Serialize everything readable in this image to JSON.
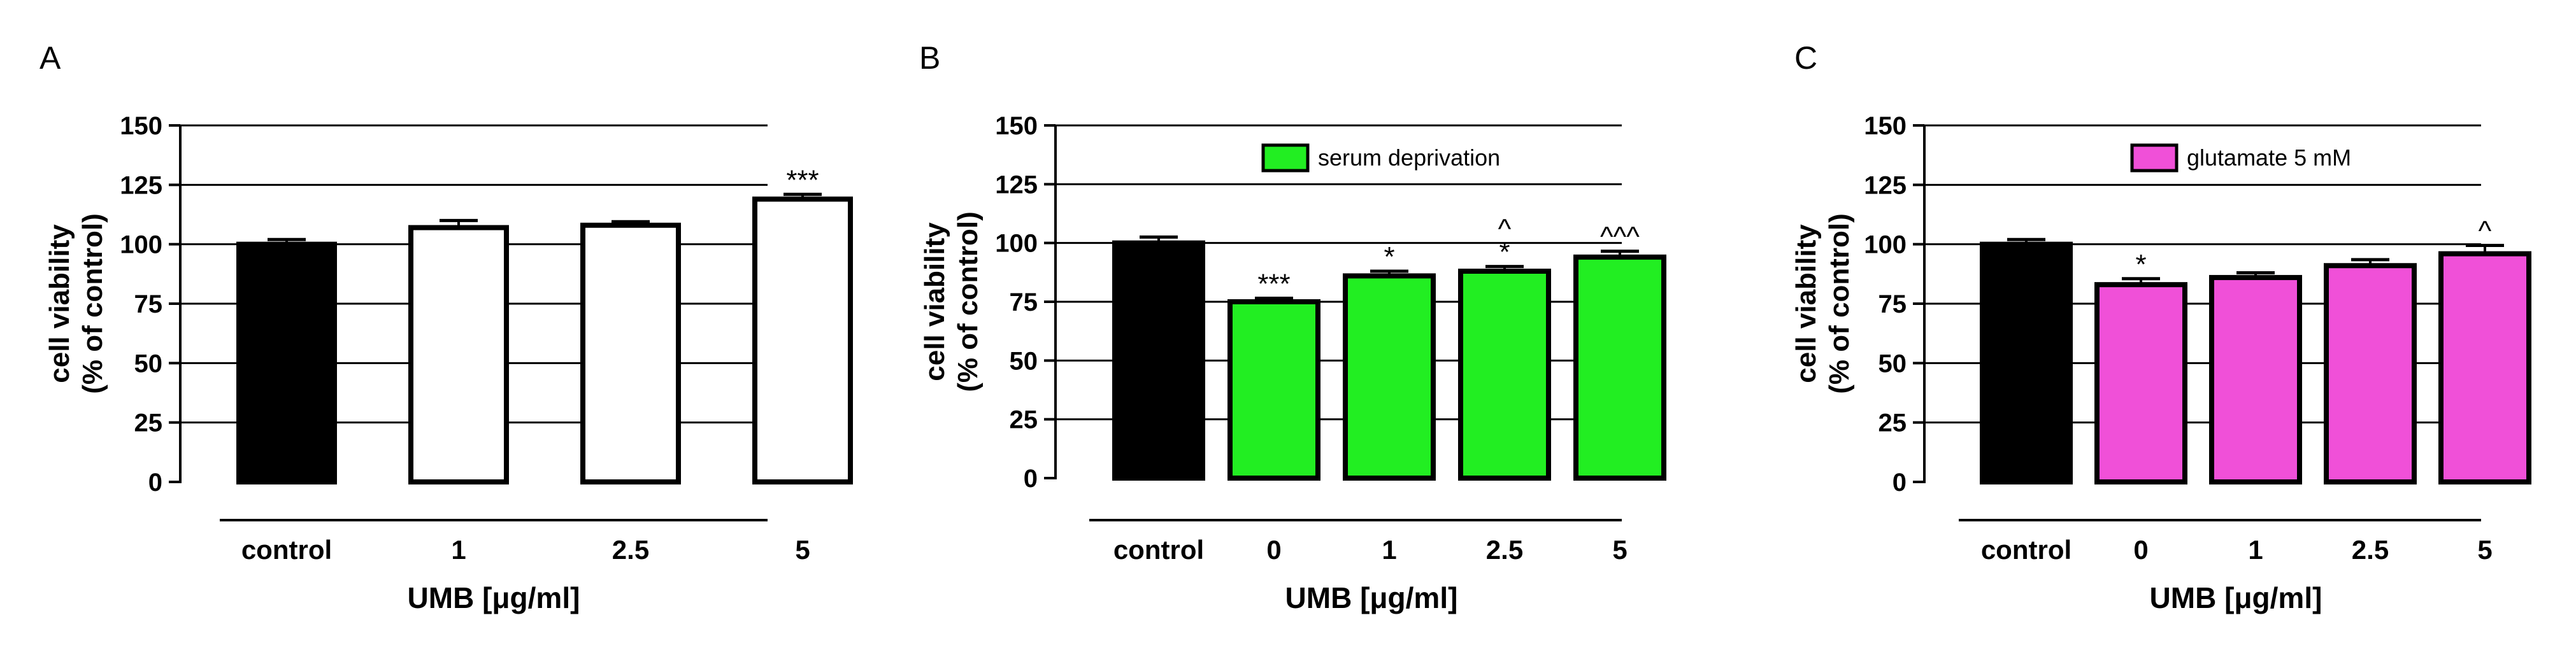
{
  "chart_data": [
    {
      "type": "bar",
      "panel": "A",
      "categories": [
        "control",
        "1",
        "2.5",
        "5"
      ],
      "series": [
        {
          "values": [
            100,
            107,
            108,
            119
          ],
          "errors": [
            2,
            3,
            1.5,
            2
          ],
          "colors": [
            "#000000",
            "#ffffff",
            "#ffffff",
            "#ffffff"
          ]
        }
      ],
      "annotations": [
        "",
        "",
        "",
        "***"
      ],
      "ylabel": [
        "cell viability",
        "(% of control)"
      ],
      "xlabel": "UMB [μg/ml]",
      "ylim": [
        0,
        150
      ],
      "yticks": [
        "0",
        "25",
        "50",
        "75",
        "100",
        "125",
        "150"
      ],
      "legend": null
    },
    {
      "type": "bar",
      "panel": "B",
      "categories": [
        "control",
        "0",
        "1",
        "2.5",
        "5"
      ],
      "series": [
        {
          "values": [
            100,
            75,
            86,
            88,
            94
          ],
          "errors": [
            2.5,
            1.5,
            2,
            2,
            2.5
          ],
          "colors": [
            "#000000",
            "#22ee22",
            "#22ee22",
            "#22ee22",
            "#22ee22"
          ]
        }
      ],
      "annotations": [
        "",
        "***",
        "*",
        "^\n*",
        "^^^"
      ],
      "ylabel": [
        "cell viability",
        "(% of control)"
      ],
      "xlabel": "UMB [μg/ml]",
      "ylim": [
        0,
        150
      ],
      "yticks": [
        "0",
        "25",
        "50",
        "75",
        "100",
        "125",
        "150"
      ],
      "legend": {
        "label": "serum deprivation",
        "color": "#22ee22"
      }
    },
    {
      "type": "bar",
      "panel": "C",
      "categories": [
        "control",
        "0",
        "1",
        "2.5",
        "5"
      ],
      "series": [
        {
          "values": [
            100,
            83,
            86,
            91,
            96
          ],
          "errors": [
            2,
            2.5,
            2,
            2.5,
            3.5
          ],
          "colors": [
            "#000000",
            "#f050d8",
            "#f050d8",
            "#f050d8",
            "#f050d8"
          ]
        }
      ],
      "annotations": [
        "",
        "*",
        "",
        "",
        "^"
      ],
      "ylabel": [
        "cell viability",
        "(% of control)"
      ],
      "xlabel": "UMB [μg/ml]",
      "ylim": [
        0,
        150
      ],
      "yticks": [
        "0",
        "25",
        "50",
        "75",
        "100",
        "125",
        "150"
      ],
      "legend": {
        "label": "glutamate 5 mM",
        "color": "#f050d8"
      }
    }
  ]
}
